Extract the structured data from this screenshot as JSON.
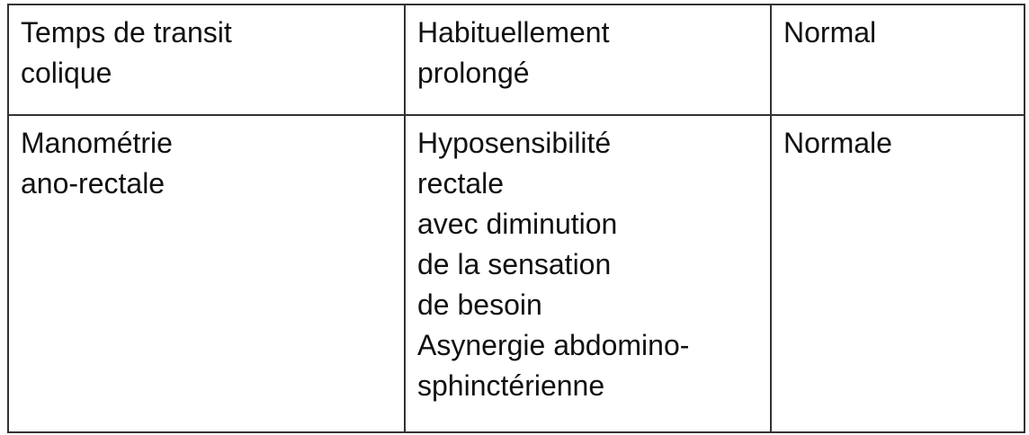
{
  "table": {
    "rows": [
      {
        "label": "Temps de transit\ncolique",
        "col2": "Habituellement\nprolongé",
        "col3": "Normal"
      },
      {
        "label": "Manométrie\nano-rectale",
        "col2": "Hyposensibilité\nrectale\navec diminution\nde la sensation\nde besoin\nAsynergie abdomino-\nsphinctérienne",
        "col3": "Normale"
      }
    ]
  }
}
